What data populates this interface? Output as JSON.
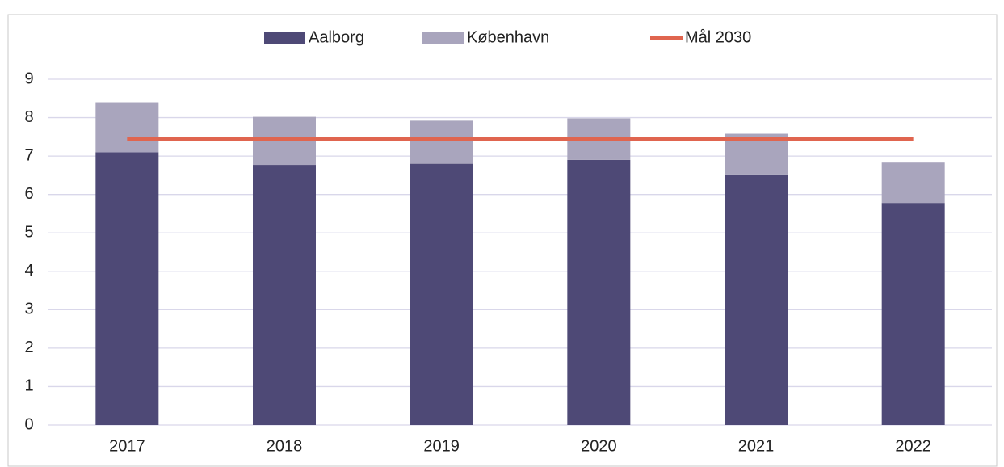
{
  "chart_data": {
    "type": "bar",
    "stacked": true,
    "categories": [
      "2017",
      "2018",
      "2019",
      "2020",
      "2021",
      "2022"
    ],
    "series": [
      {
        "name": "Aalborg",
        "color": "#4e4976",
        "values": [
          7.1,
          6.77,
          6.8,
          6.9,
          6.52,
          5.78
        ]
      },
      {
        "name": "København",
        "color": "#a9a5bd",
        "values": [
          1.3,
          1.25,
          1.12,
          1.08,
          1.06,
          1.05
        ]
      },
      {
        "name": "Mål 2030",
        "type": "line",
        "color": "#e0654f",
        "values": [
          7.45,
          7.45,
          7.45,
          7.45,
          7.45,
          7.45
        ]
      }
    ],
    "ylim": [
      0,
      9
    ],
    "yticks": [
      0,
      1,
      2,
      3,
      4,
      5,
      6,
      7,
      8,
      9
    ],
    "grid": true,
    "legend": "top"
  }
}
